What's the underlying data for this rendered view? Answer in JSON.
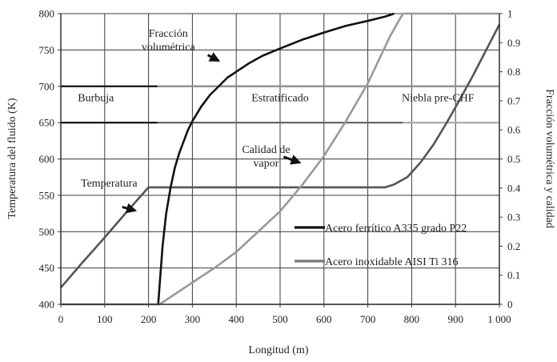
{
  "chart_data": {
    "type": "line",
    "title": "",
    "xlabel": "Longitud (m)",
    "ylabel_left": "Temperatura del fluido (K)",
    "ylabel_right": "Fracción volumétrica y calidad",
    "xlim": [
      0,
      1000
    ],
    "ylim_left": [
      400,
      800
    ],
    "ylim_right": [
      0,
      1
    ],
    "x_ticks": [
      "0",
      "100",
      "200",
      "300",
      "400",
      "500",
      "600",
      "700",
      "800",
      "900",
      "1 000"
    ],
    "y_left_ticks": [
      "400",
      "450",
      "500",
      "550",
      "600",
      "650",
      "700",
      "750",
      "800"
    ],
    "y_right_ticks": [
      "0",
      "0.1",
      "0.2",
      "0.3",
      "0.4",
      "0.5",
      "0.6",
      "0.7",
      "0.8",
      "0.9",
      "1"
    ],
    "grid": true,
    "legend": {
      "placement": "lower-right",
      "entries": [
        {
          "label": "Acero ferrítico A335 grado P22",
          "color": "#111111"
        },
        {
          "label": "Acero inoxidable AISI Ti 316",
          "color": "#777777"
        }
      ]
    },
    "regions": [
      {
        "label": "Burbuja",
        "x": 80,
        "y": 685
      },
      {
        "label": "Estratificado",
        "x": 500,
        "y": 685
      },
      {
        "label": "Niebla pre-CHF",
        "x": 860,
        "y": 685
      }
    ],
    "annotations": [
      {
        "lines": [
          "Fracción",
          "volumétrica"
        ],
        "text_x": 245,
        "text_y": 768,
        "arrow_from": [
          335,
          743
        ],
        "arrow_to": [
          360,
          735
        ]
      },
      {
        "lines": [
          "Calidad de",
          "vapor"
        ],
        "text_x": 468,
        "text_y": 608,
        "arrow_from": [
          508,
          603
        ],
        "arrow_to": [
          545,
          595
        ]
      },
      {
        "lines": [
          "Temperatura"
        ],
        "text_x": 110,
        "text_y": 562,
        "arrow_from": [
          140,
          534
        ],
        "arrow_to": [
          170,
          529
        ]
      }
    ],
    "series": [
      {
        "axis": "left",
        "color": "#111111",
        "width": 2.2,
        "x": [
          0,
          220,
          750,
          1000
        ],
        "y": [
          700,
          700,
          700,
          700
        ]
      },
      {
        "axis": "left",
        "color": "#999999",
        "width": 2.2,
        "x": [
          220,
          1000
        ],
        "y": [
          700,
          700
        ]
      },
      {
        "axis": "left",
        "color": "#111111",
        "width": 2.2,
        "x": [
          0,
          220
        ],
        "y": [
          650,
          650
        ]
      },
      {
        "axis": "left",
        "color": "#666666",
        "width": 2.2,
        "x": [
          220,
          780
        ],
        "y": [
          650,
          650
        ]
      },
      {
        "axis": "left",
        "color": "#aaaaaa",
        "width": 2.2,
        "x": [
          780,
          1000
        ],
        "y": [
          650,
          650
        ]
      },
      {
        "axis": "left",
        "color": "#555555",
        "width": 2.6,
        "x": [
          0,
          50,
          100,
          150,
          200,
          220,
          400,
          600,
          740,
          760,
          790,
          820,
          850,
          880,
          910,
          940,
          970,
          1000
        ],
        "y": [
          423,
          458,
          492,
          527,
          561,
          561,
          561,
          561,
          561,
          565,
          575,
          595,
          620,
          650,
          682,
          715,
          750,
          785
        ]
      },
      {
        "axis": "right",
        "color": "#111111",
        "width": 2.6,
        "x": [
          222,
          226,
          232,
          240,
          250,
          260,
          270,
          280,
          290,
          300,
          320,
          340,
          360,
          380,
          400,
          430,
          460,
          500,
          550,
          600,
          650,
          700,
          740,
          760
        ],
        "y": [
          0.0,
          0.08,
          0.2,
          0.31,
          0.4,
          0.47,
          0.52,
          0.56,
          0.6,
          0.63,
          0.68,
          0.72,
          0.75,
          0.78,
          0.8,
          0.83,
          0.855,
          0.88,
          0.91,
          0.935,
          0.958,
          0.975,
          0.99,
          1.0
        ]
      },
      {
        "axis": "right",
        "color": "#999999",
        "width": 2.6,
        "x": [
          0,
          225,
          260,
          300,
          350,
          400,
          450,
          500,
          550,
          600,
          650,
          700,
          750,
          780,
          1000
        ],
        "y": [
          0.0,
          0.0,
          0.035,
          0.075,
          0.125,
          0.18,
          0.25,
          0.32,
          0.41,
          0.51,
          0.63,
          0.76,
          0.92,
          1.0,
          1.0
        ]
      }
    ]
  }
}
